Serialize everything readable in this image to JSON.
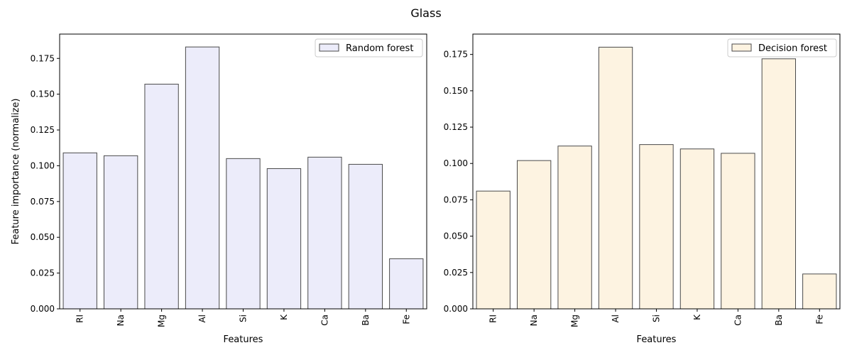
{
  "figure": {
    "title": "Glass"
  },
  "chart_data": [
    {
      "type": "bar",
      "title": "",
      "xlabel": "Features",
      "ylabel": "Feature importance (normalize)",
      "categories": [
        "RI",
        "Na",
        "Mg",
        "Al",
        "Si",
        "K",
        "Ca",
        "Ba",
        "Fe"
      ],
      "series": [
        {
          "name": "Random forest",
          "values": [
            0.109,
            0.107,
            0.157,
            0.183,
            0.105,
            0.098,
            0.106,
            0.101,
            0.035
          ],
          "color": "#ececfa"
        }
      ],
      "ylim": [
        0,
        0.192
      ],
      "yticks": [
        "0.000",
        "0.025",
        "0.050",
        "0.075",
        "0.100",
        "0.125",
        "0.150",
        "0.175"
      ],
      "edge_color": "#4a4a4a",
      "legend": "top-right",
      "grid": false
    },
    {
      "type": "bar",
      "title": "",
      "xlabel": "Features",
      "ylabel": "",
      "categories": [
        "RI",
        "Na",
        "Mg",
        "Al",
        "Si",
        "K",
        "Ca",
        "Ba",
        "Fe"
      ],
      "series": [
        {
          "name": "Decision forest",
          "values": [
            0.081,
            0.102,
            0.112,
            0.18,
            0.113,
            0.11,
            0.107,
            0.172,
            0.024
          ],
          "color": "#fdf3e1"
        }
      ],
      "ylim": [
        0,
        0.189
      ],
      "yticks": [
        "0.000",
        "0.025",
        "0.050",
        "0.075",
        "0.100",
        "0.125",
        "0.150",
        "0.175"
      ],
      "edge_color": "#4a4a4a",
      "legend": "top-right",
      "grid": false
    }
  ]
}
